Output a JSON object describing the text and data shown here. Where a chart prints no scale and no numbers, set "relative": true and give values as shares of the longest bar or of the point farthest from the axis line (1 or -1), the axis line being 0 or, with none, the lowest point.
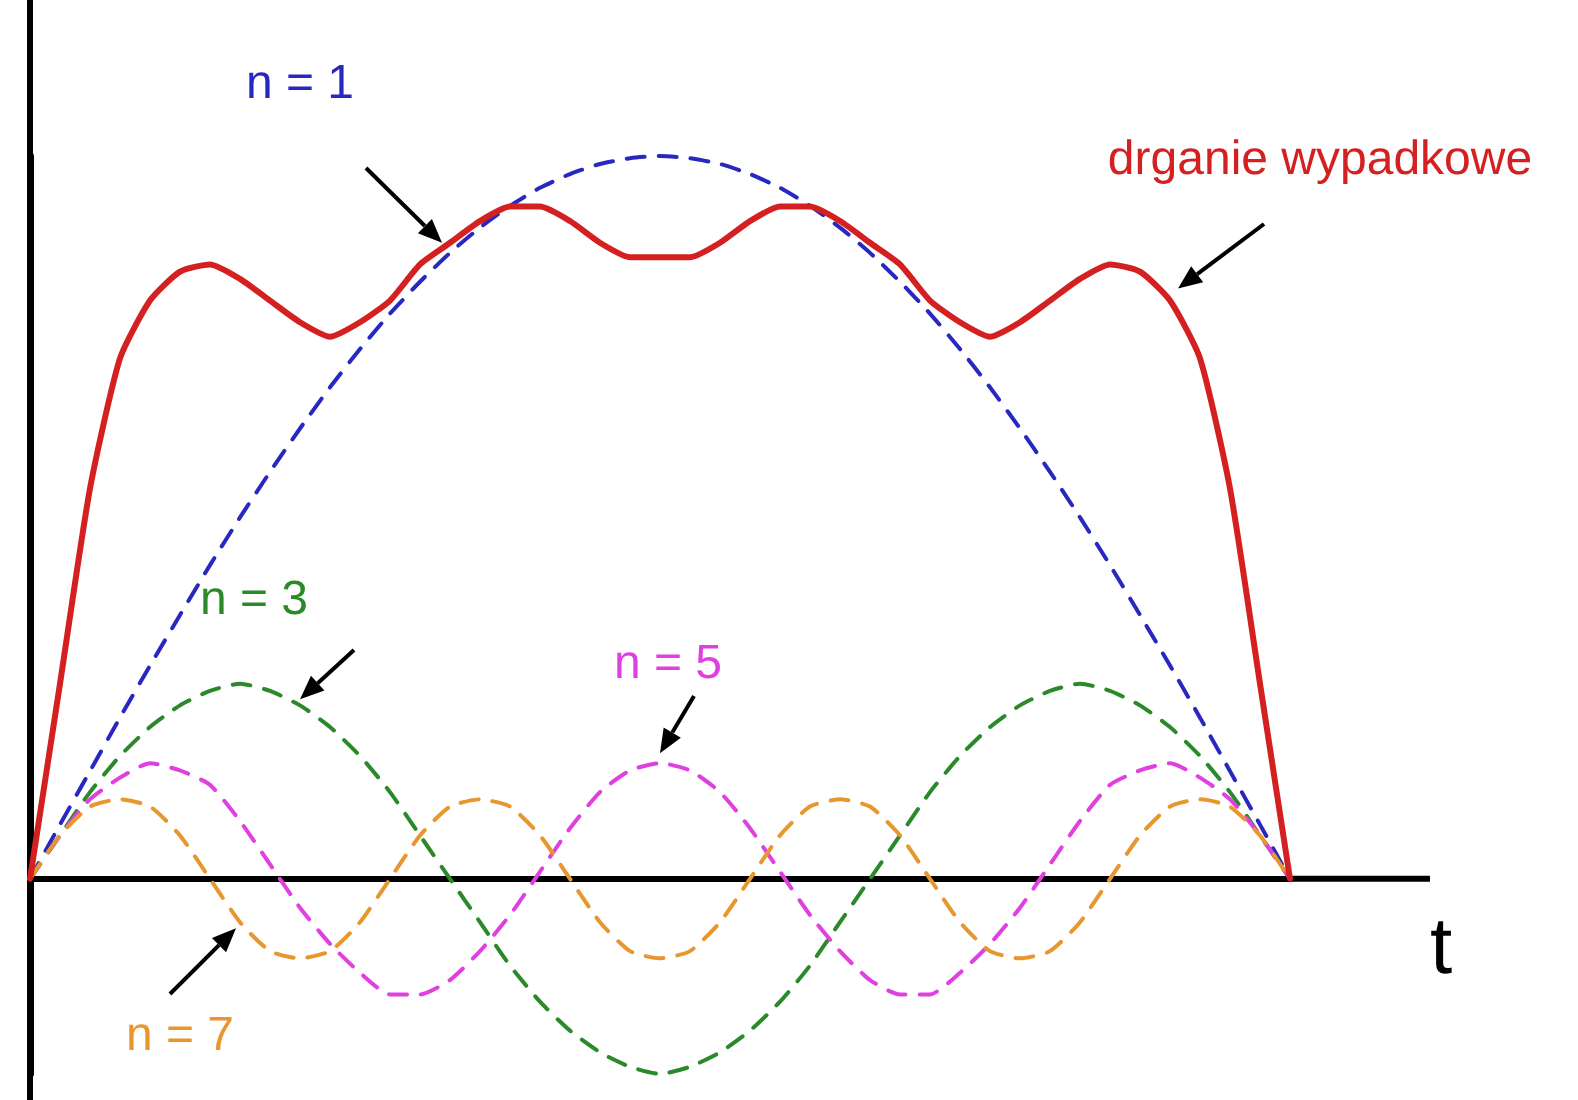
{
  "chart_data": {
    "type": "line",
    "relative": true,
    "xlabel": "t",
    "legend": false,
    "grid": false,
    "marker": "none",
    "categories": [
      null,
      null,
      null,
      null,
      null,
      null,
      null,
      null,
      null,
      null,
      null,
      null,
      null,
      null,
      null,
      null,
      null,
      null,
      null,
      null,
      null,
      null,
      null,
      null,
      null,
      null,
      null,
      null,
      null,
      null,
      null,
      null,
      null,
      null,
      null,
      null,
      null,
      null,
      null,
      null,
      null,
      null,
      null
    ],
    "series": [
      {
        "name": "drganie wypadkowe",
        "color": "#d42020",
        "line_style": "solid",
        "values": [
          0,
          0.27,
          0.54,
          0.72,
          0.8,
          0.84,
          0.85,
          0.83,
          0.8,
          0.77,
          0.75,
          0.77,
          0.8,
          0.85,
          0.88,
          0.91,
          0.93,
          0.93,
          0.91,
          0.88,
          0.86,
          0.86,
          0.86,
          0.88,
          0.91,
          0.93,
          0.93,
          0.91,
          0.88,
          0.85,
          0.8,
          0.77,
          0.75,
          0.77,
          0.8,
          0.83,
          0.85,
          0.84,
          0.8,
          0.72,
          0.54,
          0.27,
          0
        ]
      },
      {
        "name": "n = 1",
        "color": "#2828c0",
        "line_style": "dashed",
        "values": [
          0,
          0.075,
          0.149,
          0.223,
          0.295,
          0.365,
          0.434,
          0.5,
          0.563,
          0.623,
          0.68,
          0.733,
          0.782,
          0.826,
          0.866,
          0.901,
          0.931,
          0.956,
          0.975,
          0.989,
          0.997,
          1,
          0.997,
          0.989,
          0.975,
          0.956,
          0.931,
          0.901,
          0.866,
          0.826,
          0.782,
          0.733,
          0.68,
          0.623,
          0.563,
          0.5,
          0.434,
          0.365,
          0.295,
          0.223,
          0.149,
          0.075,
          0
        ]
      },
      {
        "name": "n = 3",
        "color": "#2a8a2a",
        "line_style": "dashed",
        "values": [
          0,
          0.06,
          0.12,
          0.17,
          0.21,
          0.24,
          0.26,
          0.27,
          0.26,
          0.24,
          0.21,
          0.17,
          0.12,
          0.06,
          0,
          -0.06,
          -0.12,
          -0.17,
          -0.21,
          -0.24,
          -0.26,
          -0.27,
          -0.26,
          -0.24,
          -0.21,
          -0.17,
          -0.12,
          -0.06,
          0,
          0.06,
          0.12,
          0.17,
          0.21,
          0.24,
          0.26,
          0.27,
          0.26,
          0.24,
          0.21,
          0.17,
          0.12,
          0.06,
          0
        ]
      },
      {
        "name": "n = 5",
        "color": "#e040e0",
        "line_style": "dashed",
        "values": [
          0,
          0.06,
          0.11,
          0.14,
          0.16,
          0.15,
          0.13,
          0.08,
          0.02,
          -0.04,
          -0.09,
          -0.13,
          -0.16,
          -0.16,
          -0.14,
          -0.1,
          -0.05,
          0.01,
          0.07,
          0.12,
          0.15,
          0.16,
          0.15,
          0.12,
          0.07,
          0.01,
          -0.05,
          -0.1,
          -0.14,
          -0.16,
          -0.16,
          -0.13,
          -0.09,
          -0.04,
          0.02,
          0.08,
          0.13,
          0.15,
          0.16,
          0.14,
          0.11,
          0.06,
          0
        ]
      },
      {
        "name": "n = 7",
        "color": "#e8962e",
        "line_style": "dashed",
        "values": [
          0,
          0.06,
          0.1,
          0.11,
          0.1,
          0.06,
          0,
          -0.06,
          -0.1,
          -0.11,
          -0.1,
          -0.06,
          0,
          0.06,
          0.1,
          0.11,
          0.1,
          0.06,
          0,
          -0.06,
          -0.1,
          -0.11,
          -0.1,
          -0.06,
          0,
          0.06,
          0.1,
          0.11,
          0.1,
          0.06,
          0,
          -0.06,
          -0.1,
          -0.11,
          -0.1,
          -0.06,
          0,
          0.06,
          0.1,
          0.11,
          0.1,
          0.06,
          0
        ]
      }
    ]
  }
}
